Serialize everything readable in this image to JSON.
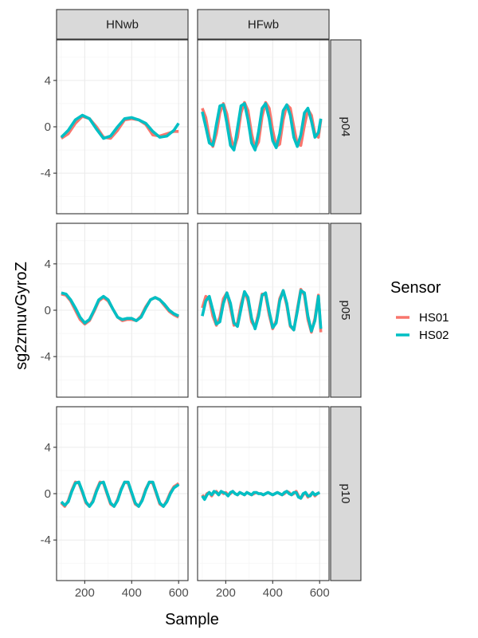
{
  "chart_data": {
    "type": "line",
    "title": "",
    "xlabel": "Sample",
    "ylabel": "sg2zmuvGyroZ",
    "xlim": [
      80,
      640
    ],
    "ylim": [
      -7.5,
      7.5
    ],
    "x_ticks": [
      200,
      400,
      600
    ],
    "y_ticks": [
      -4,
      0,
      4
    ],
    "grid": true,
    "legend": {
      "title": "Sensor",
      "position": "right",
      "entries": [
        "HS01",
        "HS02"
      ]
    },
    "colors": {
      "HS01": "#F8766D",
      "HS02": "#00BFC4"
    },
    "columns": [
      "HNwb",
      "HFwb"
    ],
    "rows": [
      "p04",
      "p05",
      "p10"
    ],
    "panels": [
      {
        "column": "HNwb",
        "row": "p04",
        "series": [
          {
            "name": "HS01",
            "x": [
              100,
              130,
              160,
              190,
              220,
              250,
              280,
              310,
              340,
              370,
              400,
              430,
              460,
              490,
              520,
              550,
              580,
              600
            ],
            "y": [
              -1.0,
              -0.6,
              0.3,
              0.9,
              0.7,
              0.0,
              -0.9,
              -1.0,
              -0.3,
              0.6,
              0.7,
              0.6,
              0.2,
              -0.7,
              -0.8,
              -0.6,
              -0.4,
              -0.4
            ]
          },
          {
            "name": "HS02",
            "x": [
              100,
              130,
              160,
              190,
              220,
              250,
              280,
              310,
              340,
              370,
              400,
              430,
              460,
              490,
              520,
              550,
              580,
              600
            ],
            "y": [
              -0.9,
              -0.3,
              0.6,
              1.0,
              0.7,
              -0.2,
              -1.0,
              -0.8,
              0.0,
              0.7,
              0.8,
              0.6,
              0.3,
              -0.4,
              -0.9,
              -0.8,
              -0.3,
              0.3
            ]
          }
        ]
      },
      {
        "column": "HFwb",
        "row": "p04",
        "series": [
          {
            "name": "HS01",
            "x": [
              100,
              115,
              130,
              145,
              160,
              175,
              190,
              205,
              220,
              235,
              250,
              265,
              280,
              295,
              310,
              325,
              340,
              355,
              370,
              385,
              400,
              415,
              430,
              445,
              460,
              475,
              490,
              505,
              520,
              535,
              550,
              565,
              580,
              595,
              605
            ],
            "y": [
              1.6,
              0.8,
              -0.9,
              -1.7,
              -0.6,
              1.2,
              2.0,
              1.1,
              -0.8,
              -1.9,
              -0.9,
              1.2,
              2.1,
              1.4,
              -0.6,
              -1.9,
              -1.3,
              0.9,
              2.1,
              1.6,
              -0.3,
              -1.7,
              -1.5,
              0.6,
              1.9,
              1.6,
              0.0,
              -1.5,
              -1.6,
              0.1,
              1.5,
              1.0,
              -0.6,
              -0.9,
              0.6
            ]
          },
          {
            "name": "HS02",
            "x": [
              100,
              115,
              130,
              145,
              160,
              175,
              190,
              205,
              220,
              235,
              250,
              265,
              280,
              295,
              310,
              325,
              340,
              355,
              370,
              385,
              400,
              415,
              430,
              445,
              460,
              475,
              490,
              505,
              520,
              535,
              550,
              565,
              580,
              595,
              605
            ],
            "y": [
              1.3,
              0.0,
              -1.4,
              -1.6,
              0.2,
              1.8,
              1.9,
              0.3,
              -1.6,
              -2.0,
              -0.1,
              1.8,
              2.0,
              0.6,
              -1.4,
              -2.0,
              -0.4,
              1.6,
              2.0,
              0.7,
              -1.2,
              -1.8,
              -0.6,
              1.4,
              1.9,
              1.0,
              -0.9,
              -1.7,
              -0.7,
              1.2,
              1.6,
              0.5,
              -0.9,
              -0.5,
              0.7
            ]
          }
        ]
      },
      {
        "column": "HNwb",
        "row": "p05",
        "series": [
          {
            "name": "HS01",
            "x": [
              100,
              120,
              140,
              160,
              180,
              200,
              220,
              240,
              260,
              280,
              300,
              320,
              340,
              360,
              380,
              400,
              420,
              440,
              460,
              480,
              500,
              520,
              540,
              560,
              580,
              600
            ],
            "y": [
              1.4,
              1.3,
              0.8,
              0.0,
              -0.8,
              -1.2,
              -0.9,
              -0.1,
              0.8,
              1.1,
              0.8,
              0.1,
              -0.6,
              -0.9,
              -0.8,
              -0.8,
              -0.9,
              -0.5,
              0.3,
              0.9,
              1.1,
              0.9,
              0.4,
              -0.1,
              -0.4,
              -0.6
            ]
          },
          {
            "name": "HS02",
            "x": [
              100,
              120,
              140,
              160,
              180,
              200,
              220,
              240,
              260,
              280,
              300,
              320,
              340,
              360,
              380,
              400,
              420,
              440,
              460,
              480,
              500,
              520,
              540,
              560,
              580,
              600
            ],
            "y": [
              1.5,
              1.4,
              0.9,
              0.2,
              -0.6,
              -1.1,
              -0.8,
              0.0,
              0.9,
              1.2,
              0.9,
              0.1,
              -0.6,
              -0.8,
              -0.7,
              -0.7,
              -0.9,
              -0.6,
              0.2,
              0.9,
              1.1,
              0.9,
              0.5,
              0.0,
              -0.3,
              -0.5
            ]
          }
        ]
      },
      {
        "column": "HFwb",
        "row": "p05",
        "series": [
          {
            "name": "HS01",
            "x": [
              100,
              115,
              130,
              145,
              160,
              175,
              190,
              205,
              220,
              235,
              250,
              265,
              280,
              295,
              310,
              325,
              340,
              355,
              370,
              385,
              400,
              415,
              430,
              445,
              460,
              475,
              490,
              505,
              520,
              535,
              550,
              565,
              580,
              595,
              605
            ],
            "y": [
              0.2,
              1.2,
              1.0,
              -0.5,
              -1.3,
              -0.6,
              1.0,
              1.5,
              0.2,
              -1.3,
              -1.1,
              0.5,
              1.6,
              0.8,
              -1.0,
              -1.5,
              -0.2,
              1.4,
              1.3,
              -0.4,
              -1.6,
              -0.9,
              1.0,
              1.7,
              0.4,
              -1.4,
              -1.7,
              0.1,
              1.8,
              1.3,
              -0.8,
              -1.9,
              -0.7,
              1.3,
              -1.9
            ]
          },
          {
            "name": "HS02",
            "x": [
              100,
              115,
              130,
              145,
              160,
              175,
              190,
              205,
              220,
              235,
              250,
              265,
              280,
              295,
              310,
              325,
              340,
              355,
              370,
              385,
              400,
              415,
              430,
              445,
              460,
              475,
              490,
              505,
              520,
              535,
              550,
              565,
              580,
              595,
              605
            ],
            "y": [
              -0.5,
              0.8,
              1.2,
              0.0,
              -1.2,
              -1.0,
              0.6,
              1.5,
              0.6,
              -1.1,
              -1.4,
              0.1,
              1.6,
              1.1,
              -0.7,
              -1.6,
              -0.5,
              1.3,
              1.5,
              -0.1,
              -1.5,
              -1.1,
              0.8,
              1.7,
              0.6,
              -1.3,
              -1.7,
              -0.1,
              1.7,
              1.5,
              -0.5,
              -1.8,
              -0.9,
              1.2,
              -1.6
            ]
          }
        ]
      },
      {
        "column": "HNwb",
        "row": "p10",
        "series": [
          {
            "name": "HS01",
            "x": [
              100,
              115,
              130,
              145,
              160,
              175,
              190,
              205,
              220,
              235,
              250,
              265,
              280,
              295,
              310,
              325,
              340,
              355,
              370,
              385,
              400,
              415,
              430,
              445,
              460,
              475,
              490,
              505,
              520,
              535,
              550,
              565,
              580,
              595,
              600
            ],
            "y": [
              -0.8,
              -1.1,
              -0.6,
              0.3,
              1.0,
              0.9,
              0.1,
              -0.8,
              -1.1,
              -0.6,
              0.3,
              1.0,
              0.9,
              0.0,
              -0.9,
              -1.1,
              -0.5,
              0.4,
              1.0,
              0.9,
              0.0,
              -0.9,
              -1.1,
              -0.5,
              0.4,
              1.0,
              0.9,
              0.0,
              -0.9,
              -1.1,
              -0.6,
              0.1,
              0.6,
              0.8,
              0.9
            ]
          },
          {
            "name": "HS02",
            "x": [
              100,
              115,
              130,
              145,
              160,
              175,
              190,
              205,
              220,
              235,
              250,
              265,
              280,
              295,
              310,
              325,
              340,
              355,
              370,
              385,
              400,
              415,
              430,
              445,
              460,
              475,
              490,
              505,
              520,
              535,
              550,
              565,
              580,
              595,
              600
            ],
            "y": [
              -0.7,
              -1.0,
              -0.7,
              0.2,
              0.9,
              1.0,
              0.2,
              -0.7,
              -1.1,
              -0.7,
              0.2,
              0.9,
              1.0,
              0.1,
              -0.8,
              -1.1,
              -0.6,
              0.3,
              1.0,
              1.0,
              0.1,
              -0.8,
              -1.1,
              -0.6,
              0.3,
              1.0,
              1.0,
              0.1,
              -0.8,
              -1.1,
              -0.7,
              0.0,
              0.5,
              0.7,
              0.8
            ]
          }
        ]
      },
      {
        "column": "HFwb",
        "row": "p10",
        "series": [
          {
            "name": "HS01",
            "x": [
              100,
              110,
              120,
              130,
              140,
              150,
              160,
              170,
              180,
              190,
              200,
              210,
              220,
              230,
              240,
              250,
              260,
              270,
              280,
              290,
              300,
              310,
              320,
              330,
              340,
              350,
              360,
              370,
              380,
              390,
              400,
              410,
              420,
              430,
              440,
              450,
              460,
              470,
              480,
              490,
              500,
              510,
              520,
              530,
              540,
              550,
              560,
              570,
              580,
              590,
              600
            ],
            "y": [
              -0.1,
              -0.4,
              0.0,
              0.1,
              -0.2,
              0.1,
              0.2,
              -0.1,
              0.2,
              0.0,
              0.1,
              -0.1,
              0.0,
              0.2,
              0.0,
              -0.1,
              0.1,
              0.0,
              -0.1,
              0.1,
              0.0,
              -0.1,
              0.0,
              0.1,
              0.0,
              0.0,
              -0.1,
              0.0,
              0.1,
              0.0,
              -0.1,
              0.0,
              0.1,
              0.0,
              -0.1,
              0.0,
              0.2,
              0.1,
              -0.1,
              0.0,
              0.2,
              -0.2,
              -0.4,
              -0.1,
              0.1,
              -0.3,
              -0.1,
              0.1,
              -0.2,
              0.0,
              0.1
            ]
          },
          {
            "name": "HS02",
            "x": [
              100,
              110,
              120,
              130,
              140,
              150,
              160,
              170,
              180,
              190,
              200,
              210,
              220,
              230,
              240,
              250,
              260,
              270,
              280,
              290,
              300,
              310,
              320,
              330,
              340,
              350,
              360,
              370,
              380,
              390,
              400,
              410,
              420,
              430,
              440,
              450,
              460,
              470,
              480,
              490,
              500,
              510,
              520,
              530,
              540,
              550,
              560,
              570,
              580,
              590,
              600
            ],
            "y": [
              -0.2,
              -0.5,
              -0.1,
              0.1,
              -0.1,
              0.2,
              0.1,
              -0.1,
              0.2,
              0.1,
              0.0,
              -0.2,
              0.1,
              0.2,
              0.0,
              -0.1,
              0.1,
              0.0,
              -0.1,
              0.1,
              0.0,
              -0.1,
              0.1,
              0.1,
              0.0,
              0.0,
              -0.1,
              0.0,
              0.1,
              0.0,
              -0.1,
              0.0,
              0.1,
              0.0,
              -0.1,
              0.1,
              0.2,
              0.0,
              -0.1,
              0.1,
              0.1,
              -0.3,
              -0.4,
              0.0,
              0.1,
              -0.2,
              -0.2,
              0.1,
              -0.1,
              0.0,
              0.1
            ]
          }
        ]
      }
    ]
  }
}
